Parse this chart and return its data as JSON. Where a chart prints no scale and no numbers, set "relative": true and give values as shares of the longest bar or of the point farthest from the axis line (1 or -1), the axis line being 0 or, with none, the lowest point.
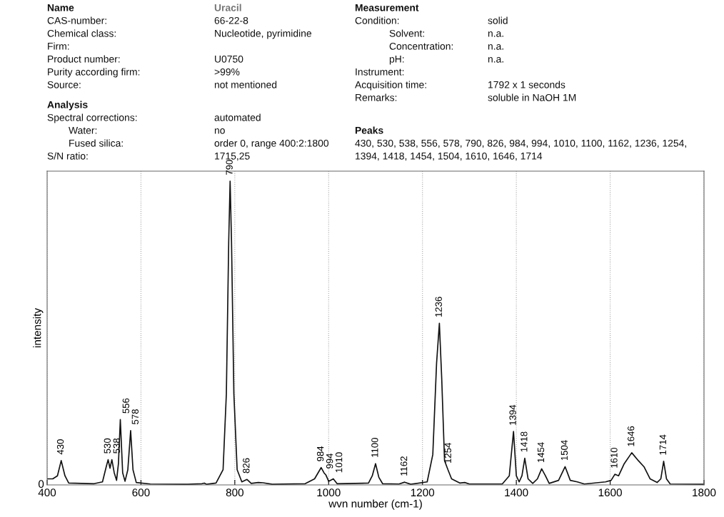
{
  "chart_data": [
    {
      "type": "other",
      "annotations": [
        "Name",
        "Uracil",
        "CAS-number:",
        "66-22-8",
        "Chemical class:",
        "Nucleotide, pyrimidine",
        "Firm:",
        "Product number:",
        "U0750",
        "Purity according firm:",
        ">99%",
        "Source:",
        "not mentioned",
        "Analysis",
        "Spectral corrections:",
        "automated",
        "Water:",
        "no",
        "Fused silica:",
        "order 0, range 400:2:1800",
        "S/N ratio:",
        "1715,25",
        "Measurement",
        "Condition:",
        "solid",
        "Solvent:",
        "n.a.",
        "Concentration:",
        "n.a.",
        "pH:",
        "n.a.",
        "Instrument:",
        "Acquisition time:",
        "1792 x 1 seconds",
        "Remarks:",
        "soluble in NaOH 1M",
        "Peaks",
        "430, 530, 538, 556, 578, 790, 826, 984, 994, 1010, 1100, 1162, 1236, 1254,",
        "1394, 1418, 1454, 1504, 1610, 1646, 1714"
      ]
    },
    {
      "type": "line",
      "relative": true,
      "xlabel": "wvn number (cm-1)",
      "ylabel": "intensity",
      "xlim": [
        400,
        1800
      ],
      "xticks": [
        400,
        600,
        800,
        1000,
        1200,
        1400,
        1600,
        1800
      ],
      "grid": "x",
      "legend": false,
      "marker": "none",
      "line_style": "solid",
      "series": [
        {
          "color": "#111111",
          "x": [
            400,
            412,
            422,
            430,
            438,
            446,
            500,
            518,
            526,
            530,
            534,
            538,
            543,
            548,
            552,
            556,
            561,
            566,
            572,
            578,
            583,
            590,
            620,
            700,
            730,
            735,
            740,
            760,
            775,
            782,
            787,
            790,
            793,
            798,
            805,
            815,
            826,
            835,
            850,
            860,
            880,
            950,
            970,
            984,
            990,
            994,
            1000,
            1010,
            1018,
            1085,
            1093,
            1100,
            1107,
            1115,
            1150,
            1162,
            1175,
            1210,
            1222,
            1230,
            1236,
            1241,
            1247,
            1254,
            1262,
            1280,
            1290,
            1300,
            1370,
            1385,
            1394,
            1400,
            1406,
            1412,
            1418,
            1425,
            1435,
            1445,
            1454,
            1462,
            1470,
            1490,
            1504,
            1515,
            1530,
            1545,
            1590,
            1602,
            1610,
            1618,
            1630,
            1646,
            1660,
            1672,
            1685,
            1700,
            1708,
            1714,
            1720,
            1728,
            1800
          ],
          "values": [
            0.02,
            0.02,
            0.03,
            0.08,
            0.03,
            0.006,
            0.004,
            0.01,
            0.06,
            0.083,
            0.055,
            0.083,
            0.04,
            0.015,
            0.07,
            0.215,
            0.04,
            0.012,
            0.05,
            0.179,
            0.05,
            0.008,
            0.003,
            0.002,
            0.004,
            0.006,
            0.002,
            0.006,
            0.05,
            0.3,
            0.8,
            1.0,
            0.8,
            0.3,
            0.05,
            0.01,
            0.018,
            0.005,
            0.008,
            0.007,
            0.002,
            0.004,
            0.02,
            0.057,
            0.04,
            0.033,
            0.012,
            0.02,
            0.004,
            0.006,
            0.03,
            0.07,
            0.025,
            0.004,
            0.003,
            0.009,
            0.002,
            0.01,
            0.1,
            0.4,
            0.532,
            0.35,
            0.08,
            0.051,
            0.02,
            0.006,
            0.008,
            0.003,
            0.003,
            0.03,
            0.176,
            0.03,
            0.01,
            0.03,
            0.088,
            0.02,
            0.005,
            0.02,
            0.053,
            0.03,
            0.005,
            0.015,
            0.06,
            0.015,
            0.01,
            0.003,
            0.01,
            0.015,
            0.035,
            0.03,
            0.07,
            0.106,
            0.08,
            0.06,
            0.02,
            0.008,
            0.02,
            0.078,
            0.02,
            0.003,
            0.002
          ]
        }
      ],
      "annotations": [
        "0",
        {
          "text": "430",
          "x": 430,
          "y": 0.08
        },
        {
          "text": "530",
          "x": 530,
          "y": 0.083
        },
        {
          "text": "538",
          "x": 538,
          "y": 0.083
        },
        {
          "text": "556",
          "x": 556,
          "y": 0.215
        },
        {
          "text": "578",
          "x": 578,
          "y": 0.179
        },
        {
          "text": "790",
          "x": 790,
          "y": 1.0
        },
        {
          "text": "826",
          "x": 826,
          "y": 0.018
        },
        {
          "text": "984",
          "x": 984,
          "y": 0.057
        },
        {
          "text": "994",
          "x": 994,
          "y": 0.033
        },
        {
          "text": "1010",
          "x": 1010,
          "y": 0.02
        },
        {
          "text": "1100",
          "x": 1100,
          "y": 0.07
        },
        {
          "text": "1162",
          "x": 1162,
          "y": 0.009
        },
        {
          "text": "1236",
          "x": 1236,
          "y": 0.532
        },
        {
          "text": "1254",
          "x": 1254,
          "y": 0.051
        },
        {
          "text": "1394",
          "x": 1394,
          "y": 0.176
        },
        {
          "text": "1418",
          "x": 1418,
          "y": 0.088
        },
        {
          "text": "1454",
          "x": 1454,
          "y": 0.053
        },
        {
          "text": "1504",
          "x": 1504,
          "y": 0.06
        },
        {
          "text": "1610",
          "x": 1610,
          "y": 0.035
        },
        {
          "text": "1646",
          "x": 1646,
          "y": 0.106
        },
        {
          "text": "1714",
          "x": 1714,
          "y": 0.078
        }
      ]
    }
  ]
}
